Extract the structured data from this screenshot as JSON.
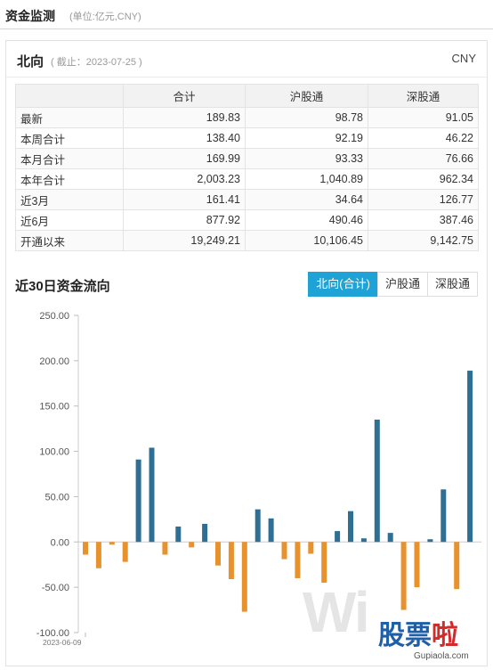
{
  "header": {
    "title": "资金监测",
    "unit": "(单位:亿元,CNY)"
  },
  "panel": {
    "title": "北向",
    "date": "( 截止：2023-07-25 )",
    "currency": "CNY"
  },
  "table": {
    "columns": [
      "",
      "合计",
      "沪股通",
      "深股通"
    ],
    "rows": [
      {
        "label": "最新",
        "values": [
          "189.83",
          "98.78",
          "91.05"
        ]
      },
      {
        "label": "本周合计",
        "values": [
          "138.40",
          "92.19",
          "46.22"
        ]
      },
      {
        "label": "本月合计",
        "values": [
          "169.99",
          "93.33",
          "76.66"
        ]
      },
      {
        "label": "本年合计",
        "values": [
          "2,003.23",
          "1,040.89",
          "962.34"
        ]
      },
      {
        "label": "近3月",
        "values": [
          "161.41",
          "34.64",
          "126.77"
        ]
      },
      {
        "label": "近6月",
        "values": [
          "877.92",
          "490.46",
          "387.46"
        ]
      },
      {
        "label": "开通以来",
        "values": [
          "19,249.21",
          "10,106.45",
          "9,142.75"
        ]
      }
    ]
  },
  "chart": {
    "title": "近30日资金流向",
    "tabs": [
      "北向(合计)",
      "沪股通",
      "深股通"
    ],
    "active_tab": 0
  },
  "chart_data": {
    "type": "bar",
    "title": "",
    "ylim": [
      -100,
      250
    ],
    "yticks": [
      "250.00",
      "200.00",
      "150.00",
      "100.00",
      "50.00",
      "0.00",
      "-50.00",
      "-100.00"
    ],
    "first_x_label": "2023-06-09",
    "colors": {
      "positive": "#2e6f93",
      "negative": "#e8922e"
    },
    "values": [
      -14,
      -29,
      -3,
      -22,
      91,
      104,
      -14,
      17,
      -6,
      20,
      -26,
      -41,
      -77,
      36,
      26,
      -19,
      -40,
      -13,
      -45,
      12,
      34,
      4,
      135,
      10,
      -75,
      -50,
      3,
      58,
      -52,
      189
    ]
  },
  "watermark": {
    "wi": "Wi",
    "logo_a": "股票",
    "logo_b": "啦",
    "url": "Gupiaola.com"
  }
}
